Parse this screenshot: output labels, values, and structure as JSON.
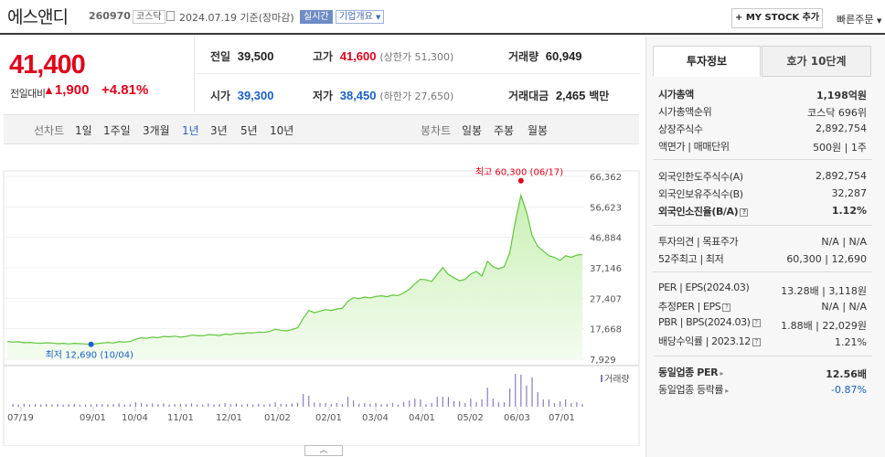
{
  "header": {
    "name": "에스앤디",
    "code": "260970",
    "market": "코스닥",
    "date": "2024.07.19 기준(장마감)",
    "live": "실시간",
    "overview": "기업개요",
    "mystock": "MY STOCK 추가",
    "quick_order": "빠른주문"
  },
  "price": {
    "current": "41,400",
    "change_label": "전일대비",
    "change": "1,900",
    "change_pct": "+4.81%"
  },
  "quote": {
    "prev_label": "전일",
    "prev": "39,500",
    "high_label": "고가",
    "high": "41,600",
    "upper_limit": "(상한가 51,300)",
    "volume_label": "거래량",
    "volume": "60,949",
    "open_label": "시가",
    "open": "39,300",
    "low_label": "저가",
    "low": "38,450",
    "lower_limit": "(하한가 27,650)",
    "value_label": "거래대금",
    "value": "2,465",
    "value_unit": "백만"
  },
  "periods": {
    "line_label": "선차트",
    "items": [
      "1일",
      "1주일",
      "3개월",
      "1년",
      "3년",
      "5년",
      "10년"
    ],
    "selected": "1년",
    "candle_label": "봉차트",
    "candle_items": [
      "일봉",
      "주봉",
      "월봉"
    ]
  },
  "chart_data": {
    "type": "area",
    "y_ticks": [
      "66,362",
      "56,623",
      "46,884",
      "37,146",
      "27,407",
      "17,668",
      "7,929"
    ],
    "ylim": [
      7929,
      66362
    ],
    "x_ticks": [
      "07/19",
      "09/01",
      "10/04",
      "11/01",
      "12/01",
      "01/02",
      "02/01",
      "03/04",
      "04/01",
      "05/02",
      "06/03",
      "07/01"
    ],
    "max_label": "최고 60,300 (06/17)",
    "min_label": "최저 12,690 (10/04)",
    "volume_legend": "거래량",
    "series": [
      {
        "values": [
          13600,
          13400,
          13500,
          13200,
          13300,
          13100,
          13000,
          13200,
          13100,
          12900,
          13000,
          12800,
          13000,
          12900,
          12800,
          12690,
          12900,
          13100,
          13300,
          13100,
          13500,
          13400,
          13600,
          14300,
          14800,
          14600,
          15000,
          14800,
          15200,
          15100,
          15300,
          15000,
          15200,
          15600,
          15500,
          15400,
          15800,
          15700,
          15500,
          16000,
          15800,
          16200,
          16100,
          16400,
          16300,
          16600,
          16500,
          16800,
          17500,
          17200,
          17000,
          17400,
          18000,
          21000,
          23500,
          22800,
          23300,
          23800,
          23500,
          24000,
          24200,
          26400,
          27600,
          27300,
          27800,
          27500,
          28000,
          28200,
          27900,
          28400,
          28300,
          29100,
          30300,
          32000,
          33500,
          33300,
          32800,
          35000,
          37200,
          35000,
          34000,
          33000,
          33500,
          35200,
          36000,
          34500,
          39200,
          37500,
          36800,
          37500,
          42000,
          52000,
          60300,
          55000,
          47500,
          44000,
          42500,
          41000,
          40500,
          39500,
          41000,
          40500,
          41200,
          41400
        ]
      }
    ]
  },
  "tabs": {
    "active": "투자정보",
    "other": "호가 10단계"
  },
  "invest": {
    "market_cap_label": "시가총액",
    "market_cap": "1,198억원",
    "rank_label": "시가총액순위",
    "rank": "코스닥 696위",
    "shares_label": "상장주식수",
    "shares": "2,892,754",
    "face_label": "액면가 | 매매단위",
    "face": "500원 | 1주",
    "foreign_limit_label": "외국인한도주식수(A)",
    "foreign_limit": "2,892,754",
    "foreign_hold_label": "외국인보유주식수(B)",
    "foreign_hold": "32,287",
    "foreign_ratio_label": "외국인소진율(B/A)",
    "foreign_ratio": "1.12%",
    "opinion_label": "투자의견 | 목표주가",
    "opinion": "N/A | N/A",
    "w52_label": "52주최고 | 최저",
    "w52": "60,300 | 12,690",
    "per_label": "PER | EPS(2024.03)",
    "per": "13.28배 | 3,118원",
    "est_label": "추정PER | EPS",
    "est": "N/A | N/A",
    "pbr_label": "PBR | BPS(2024.03)",
    "pbr": "1.88배 | 22,029원",
    "div_label": "배당수익률 | 2023.12",
    "div": "1.21%",
    "sector_per_label": "동일업종 PER",
    "sector_per": "12.56배",
    "sector_rate_label": "동일업종 등락률",
    "sector_rate": "-0.87%"
  },
  "colors": {
    "up": "#e0001b",
    "down": "#1a5fc8",
    "line": "#5fc53a"
  }
}
